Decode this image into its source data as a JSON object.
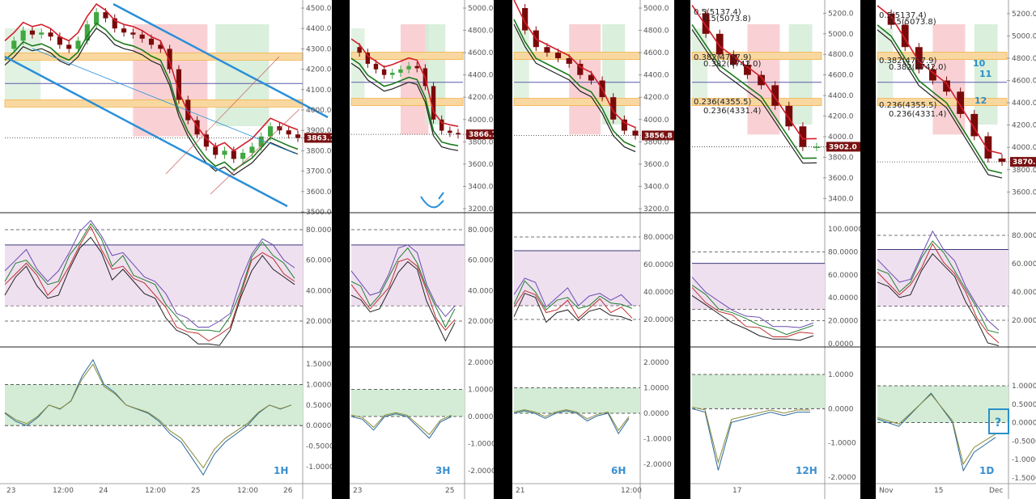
{
  "colors": {
    "green_zone": "#d4ecd6",
    "red_zone": "#f8c9cd",
    "purple_zone": "#efe0f0",
    "fib_band": "#f8d8a0",
    "fib_band_border": "#f3b24a",
    "red_line": "#d21f2c",
    "green_line": "#1d7a1d",
    "dark_line": "#222222",
    "blue_channel": "#2a8fd8",
    "candle_up": "#3fa83f",
    "candle_down": "#7a0a0a",
    "tag_bg": "#7a1010",
    "label_blue": "#2a8fc8"
  },
  "chart_data": [
    {
      "type": "line",
      "timeframe": "1H",
      "price_axis": {
        "ticks": [
          "4500.0",
          "4400.0",
          "4300.0",
          "4200.0",
          "4100.0",
          "4000.0",
          "3900.0",
          "3800.0",
          "3700.0",
          "3600.0",
          "3500.0"
        ],
        "ylim": [
          3500,
          4500
        ]
      },
      "current_price": "3863.1",
      "time_ticks": [
        "23",
        "12:00",
        "24",
        "12:00",
        "25",
        "12:00",
        "26"
      ],
      "price_series": [
        4300,
        4340,
        4390,
        4370,
        4380,
        4360,
        4320,
        4300,
        4340,
        4420,
        4480,
        4450,
        4400,
        4380,
        4370,
        4350,
        4320,
        4300,
        4200,
        4050,
        3950,
        3880,
        3820,
        3780,
        3800,
        3760,
        3790,
        3820,
        3870,
        3920,
        3900,
        3880,
        3863
      ],
      "osc_ticks": [
        "80.0000",
        "60.0000",
        "40.0000",
        "20.0000"
      ],
      "osc_series": [
        45,
        55,
        60,
        50,
        40,
        45,
        60,
        72,
        82,
        70,
        55,
        60,
        50,
        45,
        40,
        30,
        20,
        15,
        12,
        10,
        12,
        20,
        40,
        60,
        68,
        62,
        55,
        48
      ],
      "macd_ticks": [
        "1.5000",
        "1.0000",
        "0.5000",
        "0.0000",
        "-0.5000",
        "-1.0000"
      ],
      "macd_series": [
        0.3,
        0.1,
        0.0,
        0.2,
        0.5,
        0.4,
        0.6,
        1.2,
        1.6,
        1.0,
        0.8,
        0.5,
        0.4,
        0.3,
        0.1,
        -0.2,
        -0.4,
        -0.8,
        -1.2,
        -0.7,
        -0.4,
        -0.2,
        0.0,
        0.3,
        0.5,
        0.4,
        0.5
      ]
    },
    {
      "type": "line",
      "timeframe": "3H",
      "price_axis": {
        "ticks": [
          "5000.0",
          "4800.0",
          "4600.0",
          "4400.0",
          "4200.0",
          "4000.0",
          "3800.0",
          "3600.0",
          "3400.0",
          "3200.0"
        ],
        "ylim": [
          3200,
          5000
        ]
      },
      "current_price": "3866.7",
      "time_ticks": [
        "23",
        "25"
      ],
      "price_series": [
        4650,
        4600,
        4500,
        4450,
        4400,
        4420,
        4450,
        4480,
        4460,
        4300,
        4000,
        3900,
        3880,
        3866
      ],
      "osc_ticks": [
        "80.0000",
        "60.0000",
        "40.0000",
        "20.0000"
      ],
      "osc_series": [
        45,
        40,
        30,
        35,
        45,
        60,
        65,
        58,
        40,
        25,
        15,
        25
      ],
      "macd_ticks": [
        "2.0000",
        "1.0000",
        "0.0000",
        "-1.0000",
        "-2.0000"
      ],
      "macd_series": [
        0.0,
        -0.1,
        -0.5,
        0.0,
        0.1,
        0.0,
        -0.4,
        -0.8,
        -0.2,
        0.0
      ]
    },
    {
      "type": "line",
      "timeframe": "6H",
      "price_axis": {
        "ticks": [
          "5000.0",
          "4800.0",
          "4600.0",
          "4400.0",
          "4200.0",
          "4000.0",
          "3800.0",
          "3600.0",
          "3400.0",
          "3200.0"
        ],
        "ylim": [
          3200,
          5000
        ]
      },
      "current_price": "3856.8",
      "time_ticks": [
        "21",
        "12:00"
      ],
      "price_series": [
        5000,
        4800,
        4650,
        4600,
        4550,
        4500,
        4400,
        4350,
        4200,
        4000,
        3900,
        3856
      ],
      "osc_ticks": [
        "80.0000",
        "60.0000",
        "40.0000",
        "20.0000"
      ],
      "osc_series": [
        30,
        45,
        40,
        25,
        30,
        35,
        25,
        30,
        35,
        28,
        30,
        25
      ],
      "macd_ticks": [
        "2.0000",
        "1.0000",
        "0.0000",
        "-1.0000",
        "-2.0000"
      ],
      "macd_series": [
        0.0,
        0.1,
        0.0,
        -0.2,
        0.0,
        0.1,
        0.0,
        -0.3,
        -0.1,
        0.0,
        -0.8,
        -0.2
      ]
    },
    {
      "type": "line",
      "timeframe": "12H",
      "price_axis": {
        "ticks": [
          "5200.0",
          "5000.0",
          "4800.0",
          "4600.0",
          "4400.0",
          "4200.0",
          "4000.0",
          "3800.0",
          "3600.0",
          "3400.0"
        ],
        "ylim": [
          3300,
          5250
        ]
      },
      "current_price": "3902.0",
      "time_ticks": [
        "17"
      ],
      "fib_labels": [
        "0.5(5137.4)",
        "0.5(5073.8)",
        "0.382(4787.9)",
        "0.382(4742.0)",
        "0.236(4355.5)",
        "0.236(4331.4)"
      ],
      "price_series": [
        5200,
        5000,
        4800,
        4700,
        4600,
        4500,
        4300,
        4100,
        3900,
        3902
      ],
      "osc_ticks": [
        "100.0000",
        "80.0000",
        "60.0000",
        "40.0000",
        "20.0000",
        "0.0000"
      ],
      "osc_series": [
        50,
        40,
        30,
        25,
        18,
        15,
        10,
        8,
        10,
        12
      ],
      "macd_ticks": [
        "1.0000",
        "0.0000",
        "-1.0000",
        "-2.0000"
      ],
      "macd_series": [
        0.0,
        -0.1,
        -1.8,
        -0.4,
        -0.3,
        -0.2,
        -0.1,
        -0.2,
        -0.1,
        -0.1
      ]
    },
    {
      "type": "line",
      "timeframe": "1D",
      "price_axis": {
        "ticks": [
          "5200.0",
          "5000.0",
          "4800.0",
          "4600.0",
          "4400.0",
          "4200.0",
          "4000.0",
          "3800.0",
          "3600.0"
        ],
        "ylim": [
          3450,
          5250
        ]
      },
      "current_price": "3870.2",
      "time_ticks": [
        "Nov",
        "15",
        "Dec"
      ],
      "fib_labels": [
        "0.5(5137.4)",
        "0.5(5073.8)",
        "0.382(4787.9)",
        "0.382(4742.0)",
        "0.236(4355.5)",
        "0.236(4331.4)"
      ],
      "wave_labels": [
        "10",
        "11",
        "12"
      ],
      "question_label": "?",
      "price_series": [
        5200,
        5100,
        4900,
        4700,
        4600,
        4500,
        4300,
        4100,
        3900,
        3870
      ],
      "osc_ticks": [
        "80.0000",
        "60.0000",
        "40.0000",
        "20.0000"
      ],
      "osc_series": [
        55,
        50,
        40,
        45,
        60,
        75,
        65,
        55,
        40,
        25,
        12,
        8
      ],
      "macd_ticks": [
        "1.0000",
        "0.5000",
        "0.0000",
        "-0.5000",
        "-1.0000",
        "-1.5000"
      ],
      "macd_series": [
        0.1,
        0.0,
        -0.1,
        0.2,
        0.5,
        0.8,
        0.4,
        0.0,
        -1.3,
        -0.8,
        -0.6,
        -0.4
      ]
    }
  ]
}
